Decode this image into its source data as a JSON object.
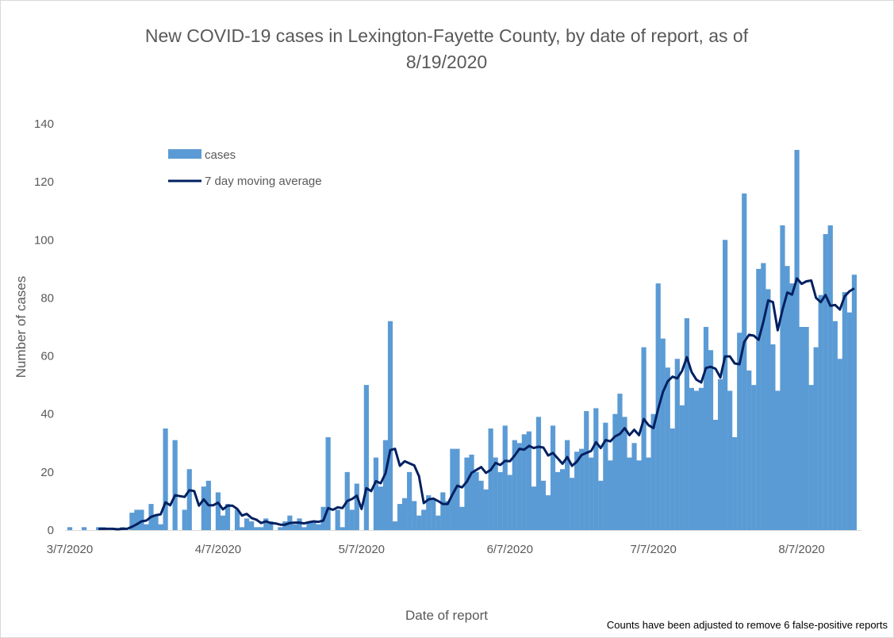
{
  "chart_data": {
    "type": "bar+line",
    "title_line1": "New COVID-19 cases in Lexington-Fayette County, by date of report, as of",
    "title_line2": "8/19/2020",
    "xlabel": "Date of report",
    "ylabel": "Number of cases",
    "ylim": [
      0,
      140
    ],
    "yticks": [
      "0",
      "20",
      "40",
      "60",
      "80",
      "100",
      "120",
      "140"
    ],
    "ytick_values": [
      0,
      20,
      40,
      60,
      80,
      100,
      120,
      140
    ],
    "start_date": "3/7/2020",
    "xticks": [
      {
        "label": "3/7/2020",
        "day_index": 0
      },
      {
        "label": "4/7/2020",
        "day_index": 31
      },
      {
        "label": "5/7/2020",
        "day_index": 61
      },
      {
        "label": "6/7/2020",
        "day_index": 92
      },
      {
        "label": "7/7/2020",
        "day_index": 122
      },
      {
        "label": "8/7/2020",
        "day_index": 153
      }
    ],
    "grid": false,
    "legend_position": "top-left",
    "series": [
      {
        "name": "cases",
        "type": "bar",
        "color": "#5B9BD5",
        "values": [
          1,
          0,
          0,
          1,
          0,
          0,
          1,
          1,
          0,
          0,
          0,
          1,
          0,
          6,
          7,
          7,
          2,
          9,
          5,
          2,
          35,
          0,
          31,
          0,
          7,
          21,
          0,
          0,
          15,
          17,
          0,
          13,
          5,
          9,
          0,
          7,
          1,
          4,
          3,
          1,
          1,
          4,
          3,
          0,
          1,
          3,
          5,
          2,
          4,
          1,
          3,
          3,
          2,
          8,
          32,
          0,
          7,
          1,
          20,
          7,
          16,
          0,
          50,
          0,
          25,
          15,
          31,
          72,
          3,
          9,
          11,
          20,
          10,
          5,
          7,
          12,
          11,
          5,
          13,
          10,
          28,
          28,
          8,
          25,
          26,
          20,
          17,
          14,
          35,
          25,
          20,
          36,
          19,
          31,
          30,
          33,
          34,
          15,
          39,
          17,
          12,
          36,
          20,
          21,
          31,
          18,
          27,
          28,
          41,
          25,
          42,
          17,
          37,
          24,
          40,
          47,
          39,
          25,
          30,
          24,
          63,
          25,
          40,
          85,
          66,
          56,
          35,
          59,
          43,
          73,
          49,
          48,
          49,
          70,
          62,
          38,
          52,
          100,
          48,
          32,
          68,
          116,
          55,
          50,
          90,
          92,
          83,
          64,
          48,
          105,
          91,
          85,
          131,
          70,
          70,
          50,
          63,
          81,
          102,
          105,
          72,
          59,
          82,
          75,
          88
        ]
      },
      {
        "name": "7 day moving average",
        "type": "line",
        "color": "#002060",
        "window": 7
      }
    ],
    "annotation": "Counts have been adjusted to remove 6 false-positive reports"
  }
}
